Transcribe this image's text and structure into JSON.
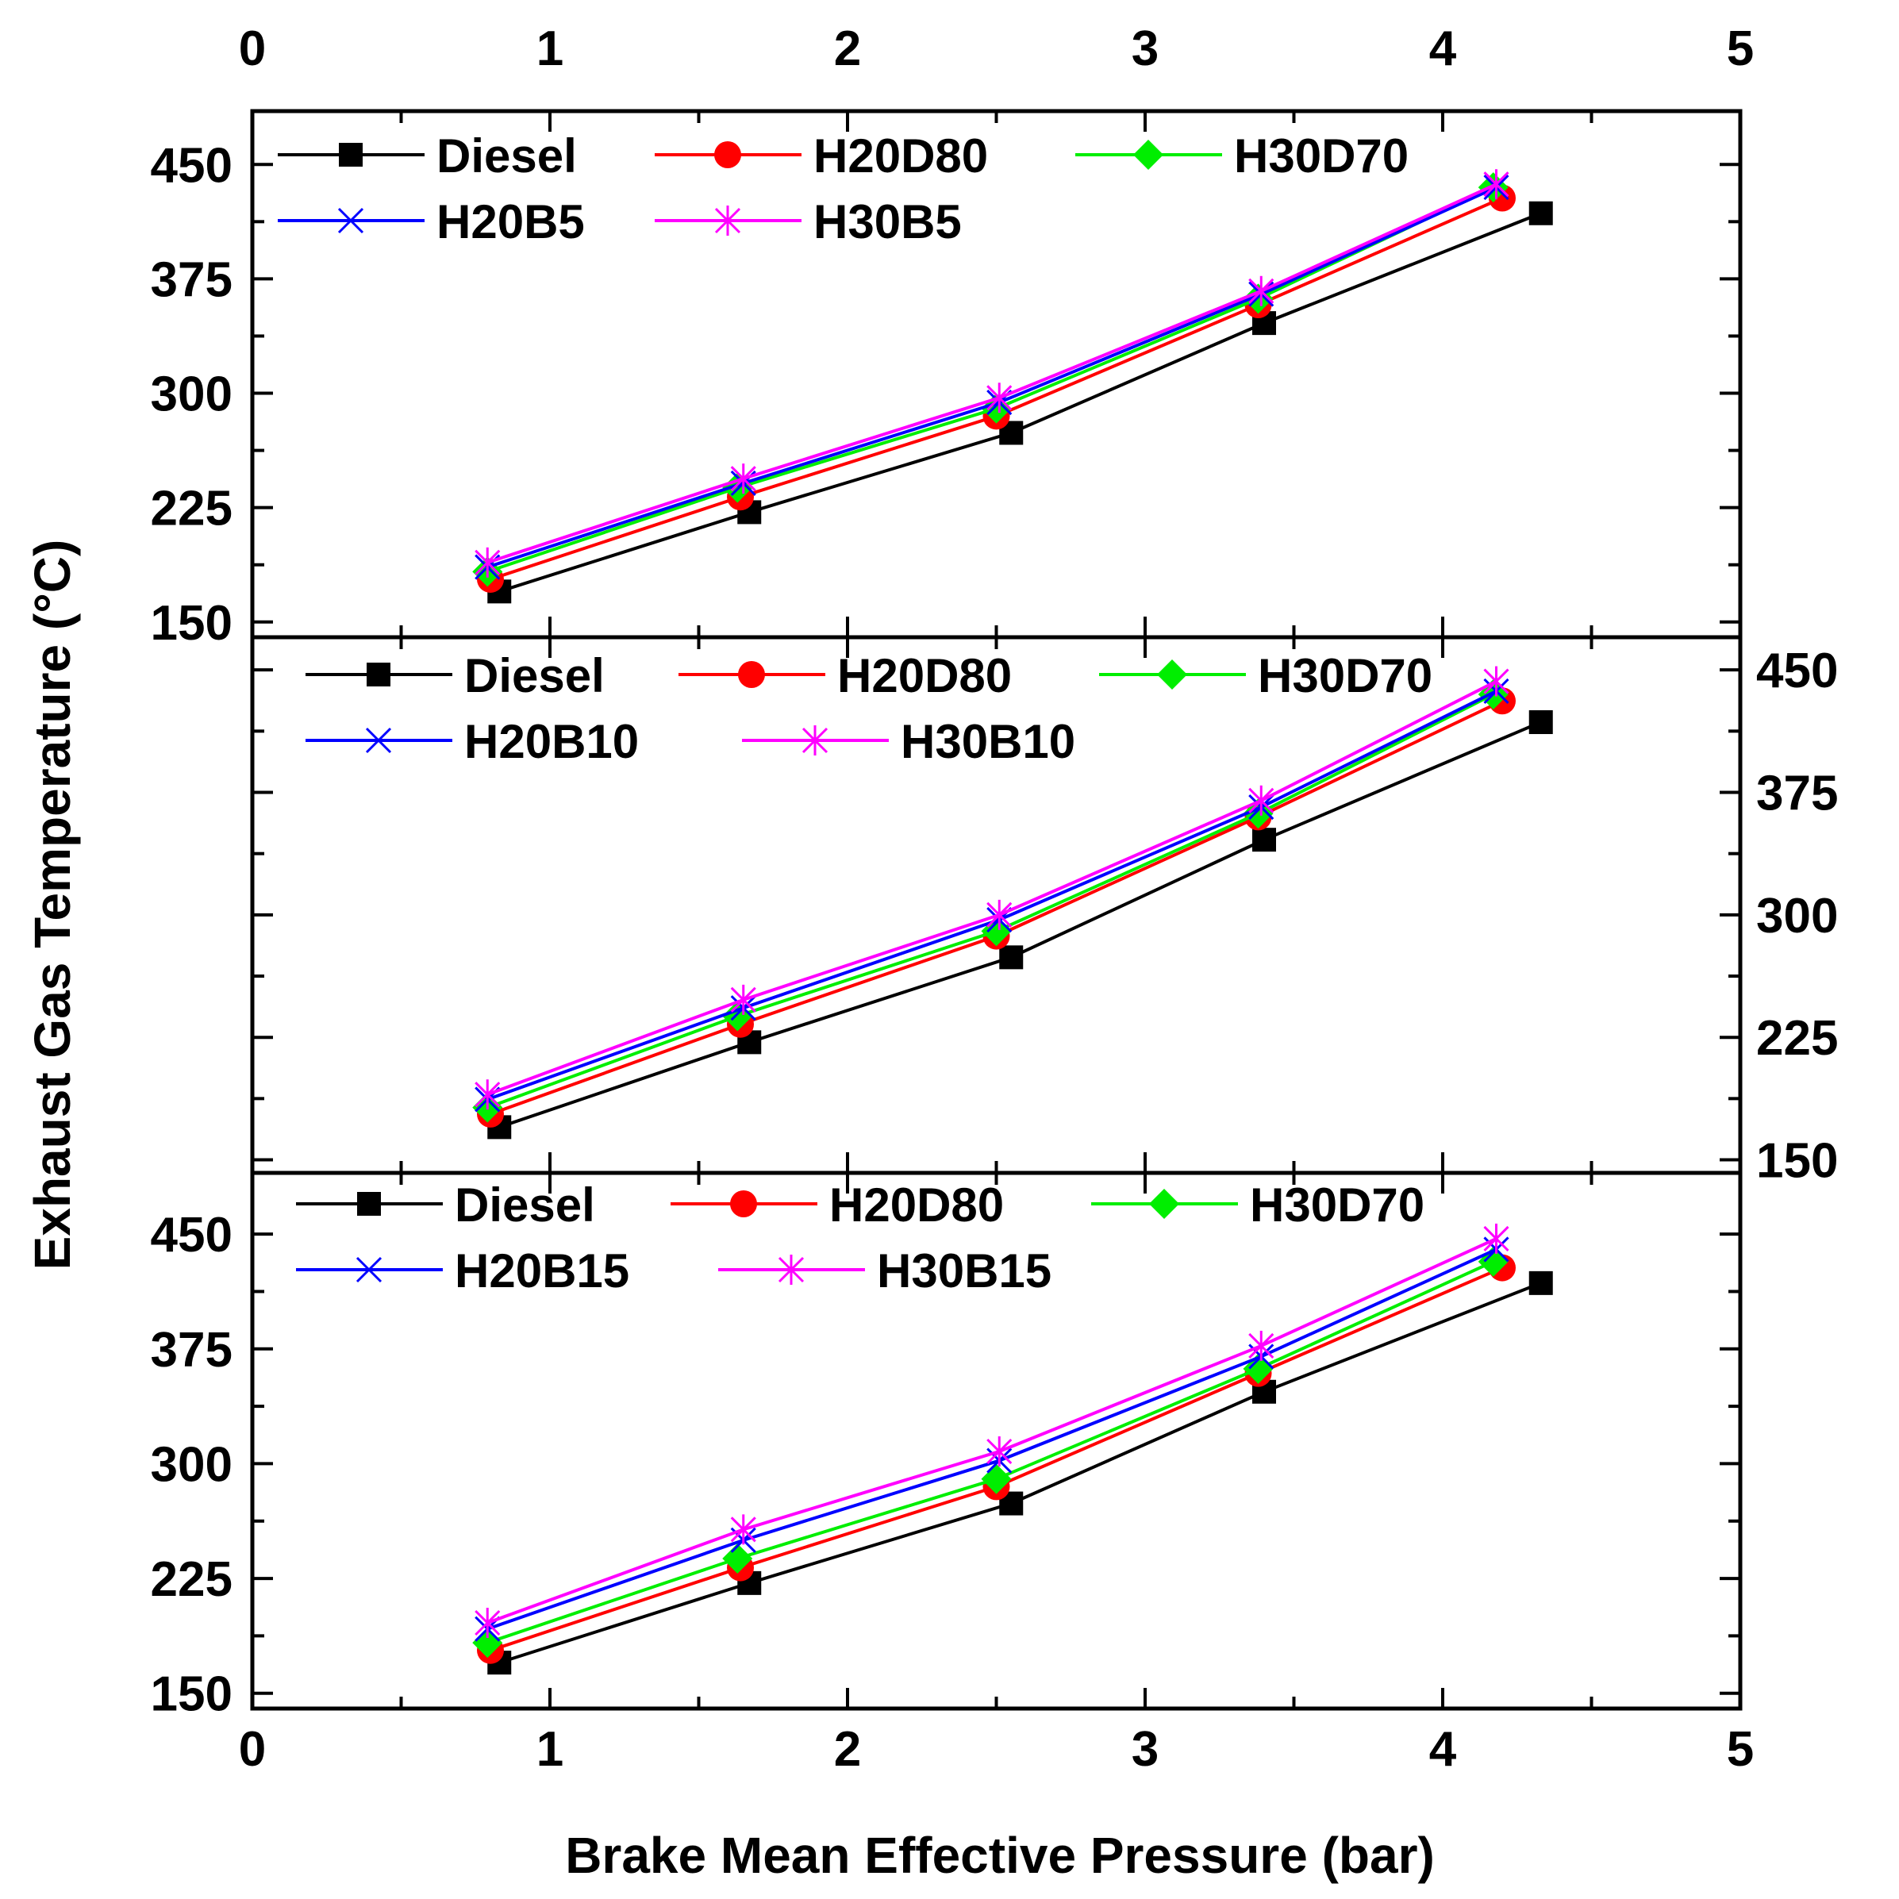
{
  "chart_data": {
    "type": "line",
    "shared_x_axis": {
      "label": "Brake Mean Effective Pressure (bar)",
      "range": [
        0,
        5
      ],
      "ticks": [
        "0",
        "1",
        "2",
        "3",
        "4",
        "5"
      ]
    },
    "y_axis_label": "Exhaust Gas Temperature (°C)",
    "y_ticks": [
      "150",
      "225",
      "300",
      "375",
      "450"
    ],
    "colors": {
      "Diesel": "#000000",
      "H20D80": "#ff0000",
      "H30D70": "#00ee00",
      "H20B": "#0000ff",
      "H30B": "#ff00ff"
    },
    "panels": [
      {
        "ylim": [
          140,
          485
        ],
        "y_axis_side": "left",
        "legend": [
          "Diesel",
          "H20D80",
          "H30D70",
          "H20B5",
          "H30B5"
        ],
        "series": [
          {
            "name": "Diesel",
            "color": "#000000",
            "marker": "square",
            "x": [
              0.83,
              1.67,
              2.55,
              3.4,
              4.33
            ],
            "y": [
              170,
              222,
              274,
              346,
              418
            ]
          },
          {
            "name": "H20D80",
            "color": "#ff0000",
            "marker": "circle",
            "x": [
              0.8,
              1.64,
              2.5,
              3.38,
              4.2
            ],
            "y": [
              178,
              232,
              285,
              358,
              428
            ]
          },
          {
            "name": "H30D70",
            "color": "#00ee00",
            "marker": "diamond",
            "x": [
              0.79,
              1.63,
              2.5,
              3.38,
              4.17
            ],
            "y": [
              183,
              238,
              290,
              362,
              435
            ]
          },
          {
            "name": "H20B5",
            "color": "#0000ff",
            "marker": "x",
            "x": [
              0.79,
              1.65,
              2.51,
              3.39,
              4.18
            ],
            "y": [
              186,
              241,
              294,
              365,
              435
            ]
          },
          {
            "name": "H30B5",
            "color": "#ff00ff",
            "marker": "star",
            "x": [
              0.79,
              1.65,
              2.51,
              3.39,
              4.18
            ],
            "y": [
              189,
              244,
              297,
              367,
              437
            ]
          }
        ]
      },
      {
        "ylim": [
          142,
          470
        ],
        "y_axis_side": "right",
        "legend": [
          "Diesel",
          "H20D80",
          "H30D70",
          "H20B10",
          "H30B10"
        ],
        "series": [
          {
            "name": "Diesel",
            "color": "#000000",
            "marker": "square",
            "x": [
              0.83,
              1.67,
              2.55,
              3.4,
              4.33
            ],
            "y": [
              170,
              222,
              274,
              346,
              418
            ]
          },
          {
            "name": "H20D80",
            "color": "#ff0000",
            "marker": "circle",
            "x": [
              0.8,
              1.64,
              2.5,
              3.38,
              4.2
            ],
            "y": [
              178,
              233,
              287,
              360,
              431
            ]
          },
          {
            "name": "H30D70",
            "color": "#00ee00",
            "marker": "diamond",
            "x": [
              0.79,
              1.63,
              2.5,
              3.38,
              4.17
            ],
            "y": [
              182,
              238,
              290,
              362,
              435
            ]
          },
          {
            "name": "H20B10",
            "color": "#0000ff",
            "marker": "x",
            "x": [
              0.79,
              1.65,
              2.51,
              3.39,
              4.18
            ],
            "y": [
              187,
              243,
              297,
              366,
              437
            ]
          },
          {
            "name": "H30B10",
            "color": "#ff00ff",
            "marker": "star",
            "x": [
              0.79,
              1.65,
              2.51,
              3.39,
              4.18
            ],
            "y": [
              190,
              248,
              300,
              370,
              443
            ]
          }
        ]
      },
      {
        "ylim": [
          140,
          490
        ],
        "y_axis_side": "left",
        "legend": [
          "Diesel",
          "H20D80",
          "H30D70",
          "H20B15",
          "H30B15"
        ],
        "series": [
          {
            "name": "Diesel",
            "color": "#000000",
            "marker": "square",
            "x": [
              0.83,
              1.67,
              2.55,
              3.4,
              4.33
            ],
            "y": [
              170,
              222,
              274,
              347,
              418
            ]
          },
          {
            "name": "H20D80",
            "color": "#ff0000",
            "marker": "circle",
            "x": [
              0.8,
              1.64,
              2.5,
              3.38,
              4.2
            ],
            "y": [
              178,
              232,
              285,
              359,
              428
            ]
          },
          {
            "name": "H30D70",
            "color": "#00ee00",
            "marker": "diamond",
            "x": [
              0.79,
              1.63,
              2.5,
              3.38,
              4.17
            ],
            "y": [
              183,
              238,
              290,
              362,
              432
            ]
          },
          {
            "name": "H20B15",
            "color": "#0000ff",
            "marker": "x",
            "x": [
              0.79,
              1.65,
              2.51,
              3.39,
              4.18
            ],
            "y": [
              192,
              250,
              302,
              370,
              440
            ]
          },
          {
            "name": "H30B15",
            "color": "#ff00ff",
            "marker": "star",
            "x": [
              0.79,
              1.65,
              2.51,
              3.39,
              4.18
            ],
            "y": [
              196,
              257,
              308,
              377,
              447
            ]
          }
        ]
      }
    ]
  }
}
